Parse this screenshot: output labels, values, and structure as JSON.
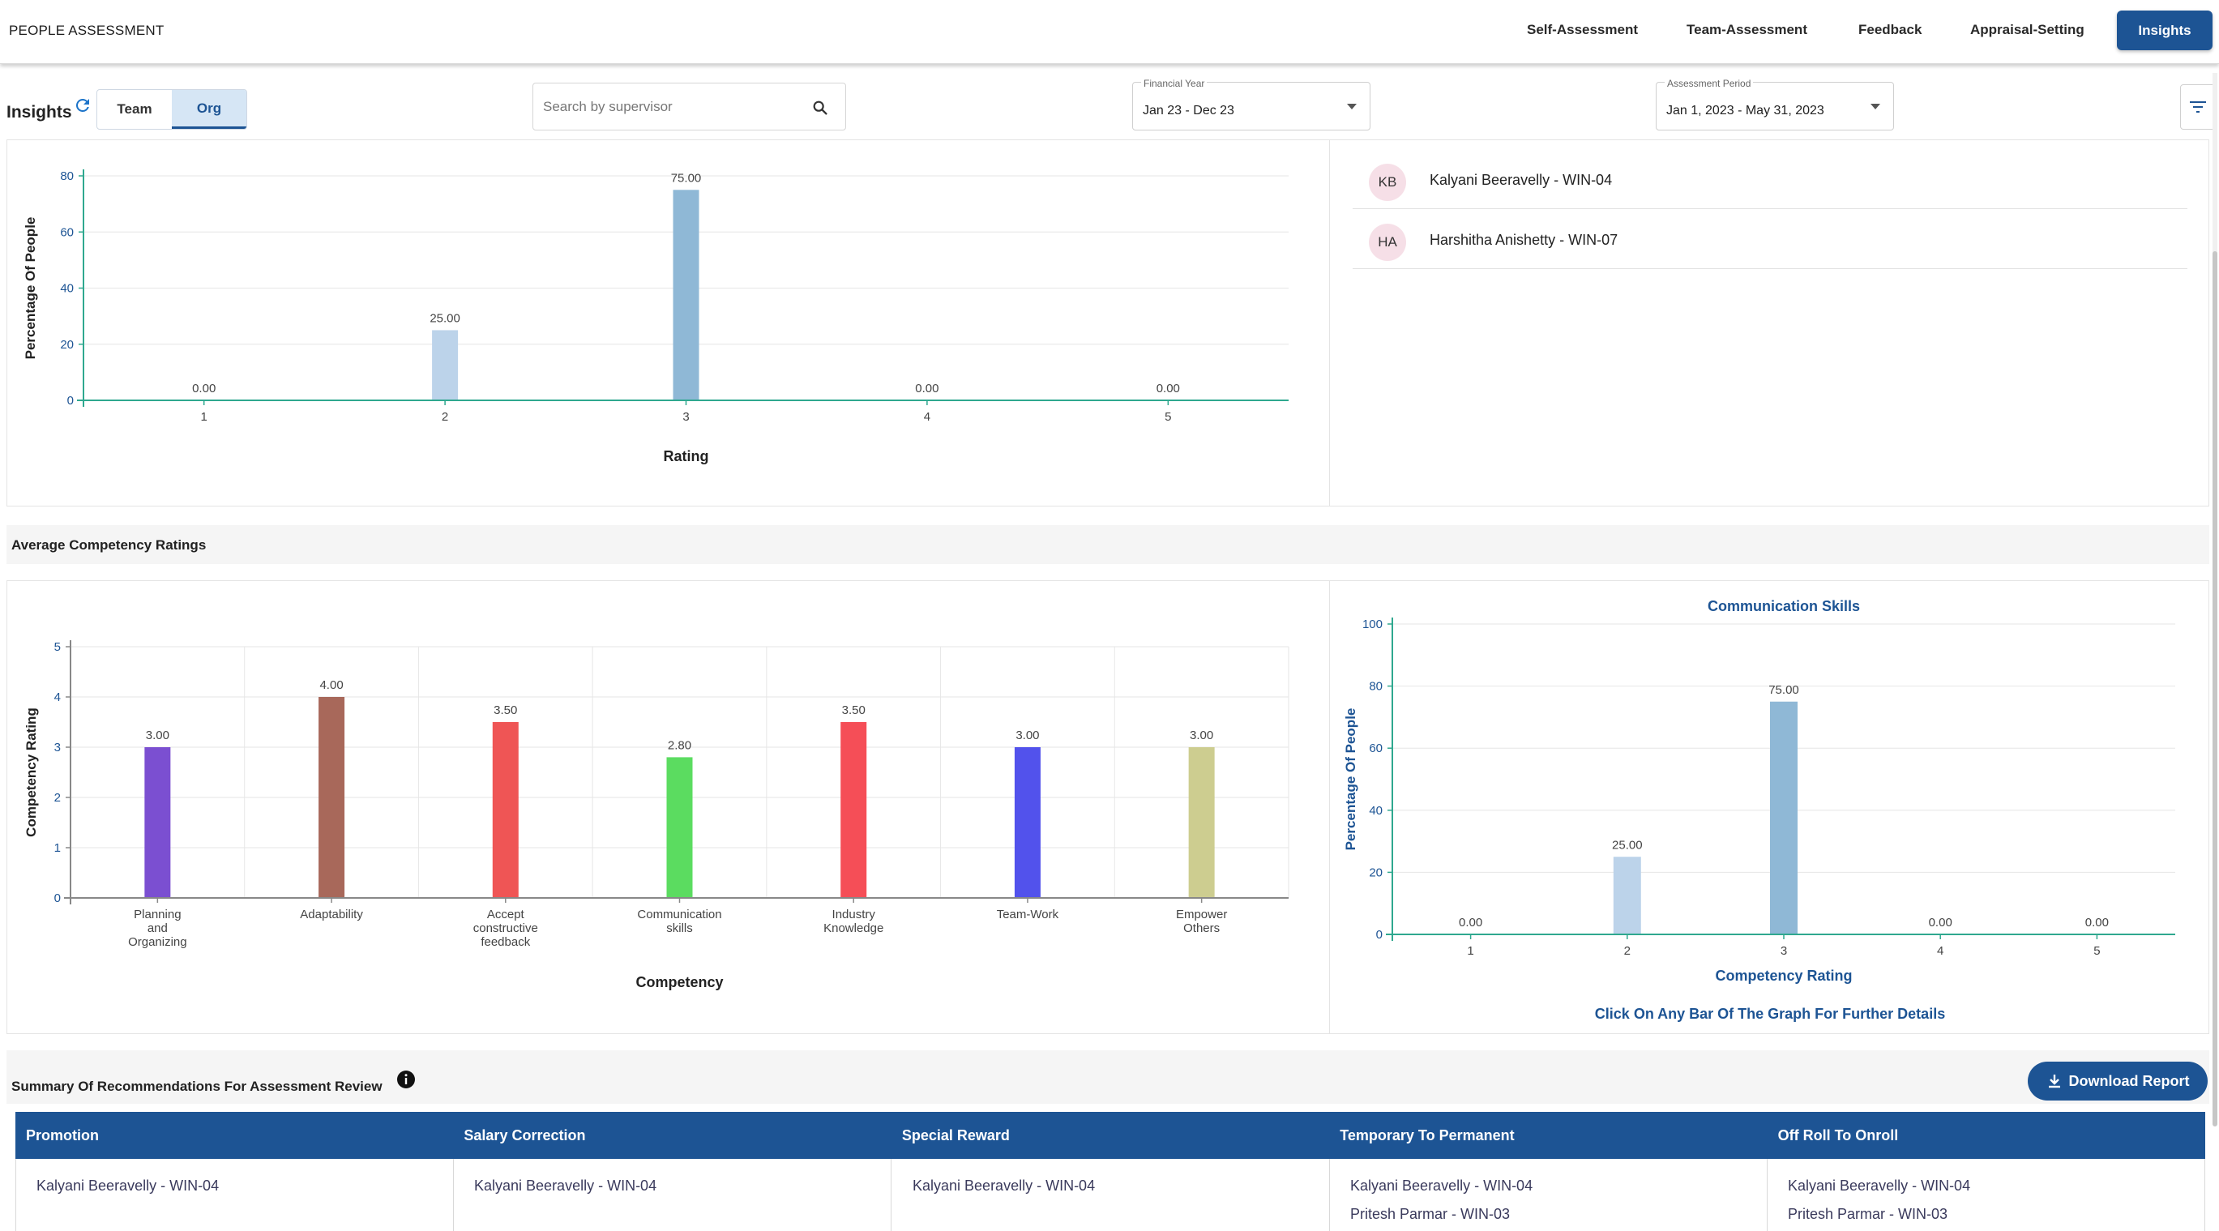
{
  "app_title": "PEOPLE ASSESSMENT",
  "nav": {
    "self_assessment": "Self-Assessment",
    "team_assessment": "Team-Assessment",
    "feedback": "Feedback",
    "appraisal_setting": "Appraisal-Setting",
    "insights": "Insights"
  },
  "toolbar": {
    "insights_label": "Insights",
    "toggle_team": "Team",
    "toggle_org": "Org",
    "search_placeholder": "Search by supervisor",
    "financial_year_label": "Financial Year",
    "financial_year_value": "Jan 23 - Dec 23",
    "assessment_period_label": "Assessment Period",
    "assessment_period_value": "Jan 1, 2023 - May 31, 2023"
  },
  "people_list": [
    {
      "initials": "KB",
      "name": "Kalyani Beeravelly - WIN-04"
    },
    {
      "initials": "HA",
      "name": "Harshitha Anishetty - WIN-07"
    }
  ],
  "sections": {
    "competency_title": "Average Competency Ratings",
    "summary_title": "Summary Of Recommendations For Assessment Review",
    "download_label": "Download Report",
    "click_hint": "Click On Any Bar Of The Graph For Further Details"
  },
  "chart_data": [
    {
      "type": "bar",
      "categories": [
        "1",
        "2",
        "3",
        "4",
        "5"
      ],
      "values": [
        0,
        25,
        75,
        0,
        0
      ],
      "data_labels": [
        "0.00",
        "25.00",
        "75.00",
        "0.00",
        "0.00"
      ],
      "xlabel": "Rating",
      "ylabel": "Percentage Of People",
      "ylim": [
        0,
        80
      ],
      "yticks": [
        "0",
        "20",
        "40",
        "60",
        "80"
      ],
      "colors": [
        "#bcd3ea",
        "#bcd3ea",
        "#8fb8d6",
        "#bcd3ea",
        "#bcd3ea"
      ],
      "grid": true
    },
    {
      "type": "bar",
      "categories": [
        "Planning and Organizing",
        "Adaptability",
        "Accept constructive feedback",
        "Communication skills",
        "Industry Knowledge",
        "Team-Work",
        "Empower Others"
      ],
      "category_lines": [
        [
          "Planning",
          "and",
          "Organizing"
        ],
        [
          "Adaptability"
        ],
        [
          "Accept",
          "constructive",
          "feedback"
        ],
        [
          "Communication",
          "skills"
        ],
        [
          "Industry",
          "Knowledge"
        ],
        [
          "Team-Work"
        ],
        [
          "Empower",
          "Others"
        ]
      ],
      "values": [
        3.0,
        4.0,
        3.5,
        2.8,
        3.5,
        3.0,
        3.0
      ],
      "data_labels": [
        "3.00",
        "4.00",
        "3.50",
        "2.80",
        "3.50",
        "3.00",
        "3.00"
      ],
      "colors": [
        "#7b4fd1",
        "#a8685a",
        "#ef5555",
        "#5bdc60",
        "#f54e57",
        "#5252ec",
        "#cdcd90"
      ],
      "xlabel": "Competency",
      "ylabel": "Competency Rating",
      "ylim": [
        0,
        5
      ],
      "yticks": [
        "0",
        "1",
        "2",
        "3",
        "4",
        "5"
      ],
      "grid": true
    },
    {
      "type": "bar",
      "title": "Communication Skills",
      "categories": [
        "1",
        "2",
        "3",
        "4",
        "5"
      ],
      "values": [
        0,
        25,
        75,
        0,
        0
      ],
      "data_labels": [
        "0.00",
        "25.00",
        "75.00",
        "0.00",
        "0.00"
      ],
      "xlabel": "Competency Rating",
      "ylabel": "Percentage Of People",
      "ylim": [
        0,
        100
      ],
      "yticks": [
        "0",
        "20",
        "40",
        "60",
        "80",
        "100"
      ],
      "colors": [
        "#bcd3ea",
        "#bcd3ea",
        "#8fb8d6",
        "#bcd3ea",
        "#bcd3ea"
      ],
      "grid": true
    }
  ],
  "recommendations": {
    "columns": [
      "Promotion",
      "Salary Correction",
      "Special Reward",
      "Temporary To Permanent",
      "Off Roll To Onroll"
    ],
    "rows": [
      [
        "Kalyani Beeravelly - WIN-04"
      ],
      [
        "Kalyani Beeravelly - WIN-04"
      ],
      [
        "Kalyani Beeravelly - WIN-04"
      ],
      [
        "Kalyani Beeravelly - WIN-04",
        "Pritesh Parmar - WIN-03"
      ],
      [
        "Kalyani Beeravelly - WIN-04",
        "Pritesh Parmar - WIN-03"
      ]
    ]
  },
  "icons": {
    "refresh": "refresh-icon",
    "search": "search-icon",
    "filter": "filter-icon",
    "info": "info-icon",
    "download": "download-icon"
  },
  "colors": {
    "primary": "#1d5494",
    "axis": "#2fa88f",
    "axis_blue": "#1d5494"
  }
}
